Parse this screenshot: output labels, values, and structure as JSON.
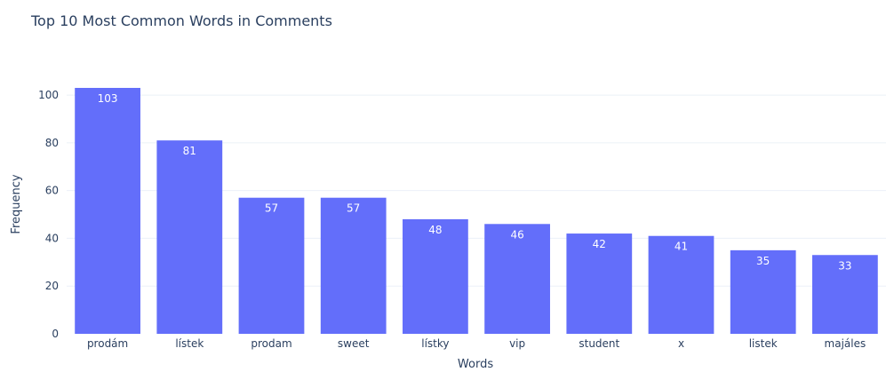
{
  "chart_data": {
    "type": "bar",
    "title": "Top 10 Most Common Words in Comments",
    "xlabel": "Words",
    "ylabel": "Frequency",
    "categories": [
      "prodám",
      "lístek",
      "prodam",
      "sweet",
      "lístky",
      "vip",
      "student",
      "x",
      "listek",
      "majáles"
    ],
    "values": [
      103,
      81,
      57,
      57,
      48,
      46,
      42,
      41,
      35,
      33
    ],
    "ylim": [
      0,
      103
    ],
    "yticks": [
      0,
      20,
      40,
      60,
      80,
      100
    ],
    "grid": true,
    "bar_color": "#636efa",
    "data_labels": true
  }
}
